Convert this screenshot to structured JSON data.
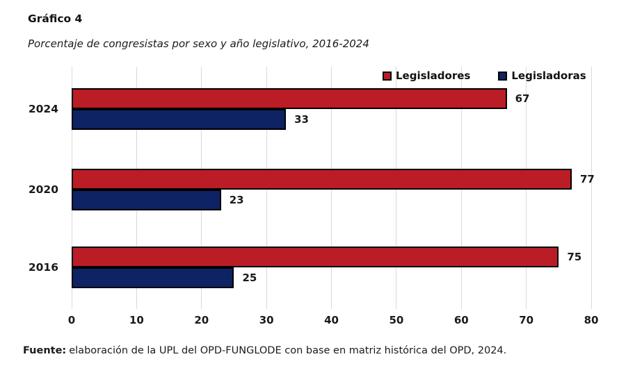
{
  "header": {
    "title": "Gráfico 4",
    "subtitle": "Porcentaje de congresistas por sexo y año legislativo, 2016-2024"
  },
  "chart_data": {
    "type": "bar",
    "orientation": "horizontal",
    "title": "Porcentaje de congresistas por sexo y año legislativo, 2016-2024",
    "categories": [
      "2024",
      "2020",
      "2016"
    ],
    "series": [
      {
        "name": "Legisladores",
        "color": "#bb1d26",
        "values": [
          67,
          77,
          75
        ]
      },
      {
        "name": "Legisladoras",
        "color": "#0e2363",
        "values": [
          33,
          23,
          25
        ]
      }
    ],
    "xlim": [
      0,
      80
    ],
    "xticks": [
      0,
      10,
      20,
      30,
      40,
      50,
      60,
      70,
      80
    ],
    "grid": "vertical",
    "gridline_color": "#d9d9d9",
    "bar_border_color": "#000000",
    "legend_position": "top-right",
    "data_labels": true
  },
  "source": {
    "label": "Fuente:",
    "text": "elaboración de la UPL del OPD-FUNGLODE con base en matriz histórica del OPD, 2024."
  }
}
